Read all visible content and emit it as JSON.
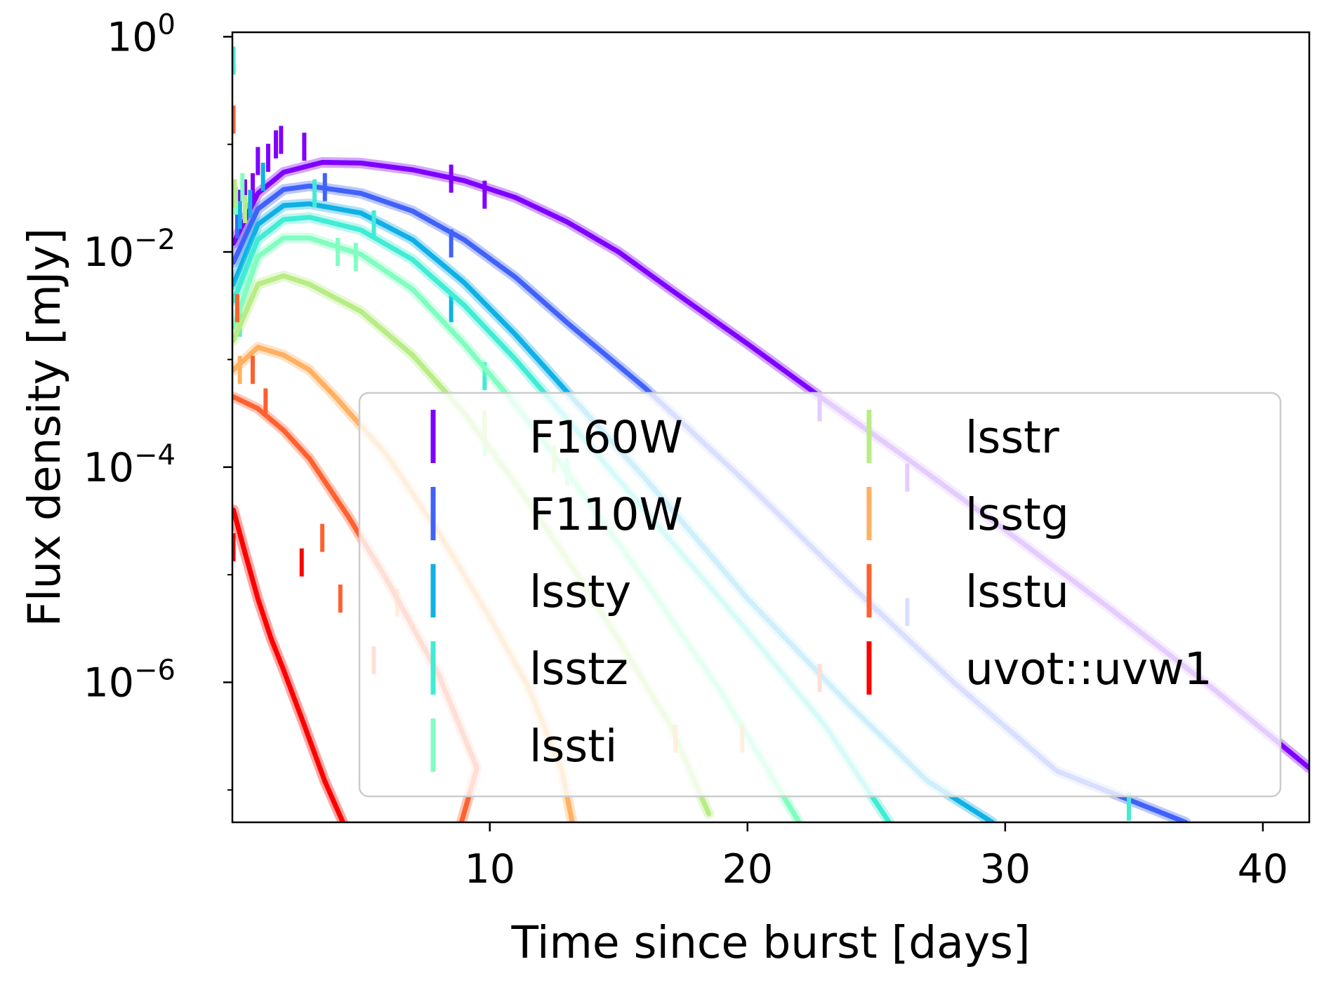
{
  "chart_data": {
    "type": "line",
    "xlabel": "Time since burst [days]",
    "ylabel": "Flux density [mJy]",
    "xlim": [
      0.01,
      41.8
    ],
    "ylim": [
      5e-08,
      1.1
    ],
    "yscale": "log",
    "x_ticks": [
      10,
      20,
      30,
      40
    ],
    "x_tick_labels": [
      "10",
      "20",
      "30",
      "40"
    ],
    "y_ticks": [
      1,
      0.01,
      0.0001,
      1e-06
    ],
    "y_tick_labels": [
      {
        "base": "10",
        "exp": "0"
      },
      {
        "base": "10",
        "exp": "−2"
      },
      {
        "base": "10",
        "exp": "−4"
      },
      {
        "base": "10",
        "exp": "−6"
      }
    ],
    "legend": {
      "location": "lower right",
      "columns": 2
    },
    "grid": false,
    "series": [
      {
        "name": "F160W",
        "color": "#7f00ff",
        "model": [
          [
            0.05,
            0.012
          ],
          [
            1,
            0.035
          ],
          [
            2,
            0.055
          ],
          [
            3.5,
            0.068
          ],
          [
            5,
            0.067
          ],
          [
            7,
            0.058
          ],
          [
            9,
            0.046
          ],
          [
            11,
            0.032
          ],
          [
            13,
            0.019
          ],
          [
            15,
            0.01
          ],
          [
            17,
            0.0045
          ],
          [
            20,
            0.0014
          ],
          [
            23,
            0.00042
          ],
          [
            26,
            0.00013
          ],
          [
            30,
            2.6e-05
          ],
          [
            34,
            5e-06
          ],
          [
            38,
            9e-07
          ],
          [
            41.8,
            1.6e-07
          ]
        ],
        "points": [
          [
            0.3,
            0.028
          ],
          [
            0.5,
            0.035
          ],
          [
            0.8,
            0.04
          ],
          [
            1.0,
            0.07
          ],
          [
            1.4,
            0.075
          ],
          [
            1.7,
            0.1
          ],
          [
            1.9,
            0.11
          ],
          [
            2.8,
            0.095
          ],
          [
            8.5,
            0.048
          ],
          [
            9.8,
            0.034
          ],
          [
            22.8,
            0.00036
          ],
          [
            26.2,
            8e-05
          ]
        ]
      },
      {
        "name": "F110W",
        "color": "#4062fa",
        "model": [
          [
            0.05,
            0.008
          ],
          [
            1,
            0.025
          ],
          [
            2,
            0.038
          ],
          [
            3,
            0.041
          ],
          [
            5,
            0.035
          ],
          [
            7,
            0.024
          ],
          [
            9,
            0.013
          ],
          [
            11,
            0.0058
          ],
          [
            13,
            0.0022
          ],
          [
            16,
            0.00055
          ],
          [
            20,
            7e-05
          ],
          [
            24,
            8e-06
          ],
          [
            28,
            1e-06
          ],
          [
            32,
            1.5e-07
          ],
          [
            37,
            5e-08
          ]
        ],
        "points": [
          [
            0.2,
            0.018
          ],
          [
            0.5,
            0.025
          ],
          [
            3.6,
            0.04
          ],
          [
            8.5,
            0.012
          ],
          [
            26.2,
            4.5e-06
          ]
        ]
      },
      {
        "name": "lssty",
        "color": "#0fb0e6",
        "model": [
          [
            0.05,
            0.005
          ],
          [
            1,
            0.018
          ],
          [
            2,
            0.027
          ],
          [
            3,
            0.028
          ],
          [
            5,
            0.023
          ],
          [
            7,
            0.013
          ],
          [
            9,
            0.0052
          ],
          [
            11,
            0.0017
          ],
          [
            13,
            0.0005
          ],
          [
            16,
            8e-05
          ],
          [
            20,
            6e-06
          ],
          [
            24,
            6e-07
          ],
          [
            27,
            1.2e-07
          ],
          [
            29.5,
            5e-08
          ]
        ],
        "points": [
          [
            0.3,
            0.022
          ],
          [
            0.7,
            0.028
          ],
          [
            1.2,
            0.05
          ],
          [
            8.5,
            0.003
          ]
        ]
      },
      {
        "name": "lsstz",
        "color": "#40ecd4",
        "model": [
          [
            0.05,
            0.0035
          ],
          [
            1,
            0.013
          ],
          [
            2,
            0.02
          ],
          [
            3,
            0.021
          ],
          [
            5,
            0.016
          ],
          [
            7,
            0.0085
          ],
          [
            9,
            0.0032
          ],
          [
            11,
            0.001
          ],
          [
            13,
            0.00028
          ],
          [
            16,
            4e-05
          ],
          [
            20,
            3e-06
          ],
          [
            23,
            4e-07
          ],
          [
            25.5,
            5e-08
          ]
        ],
        "points": [
          [
            0.05,
            0.6
          ],
          [
            0.3,
            0.0022
          ],
          [
            3.2,
            0.035
          ],
          [
            5.5,
            0.018
          ],
          [
            9.8,
            0.0007
          ],
          [
            34.8,
            7e-08
          ]
        ]
      },
      {
        "name": "lssti",
        "color": "#80fec0",
        "model": [
          [
            0.05,
            0.002
          ],
          [
            1,
            0.009
          ],
          [
            2,
            0.0135
          ],
          [
            3,
            0.0135
          ],
          [
            5,
            0.0095
          ],
          [
            7,
            0.0045
          ],
          [
            9,
            0.0014
          ],
          [
            11,
            0.00038
          ],
          [
            13,
            9e-05
          ],
          [
            16,
            9e-06
          ],
          [
            19,
            8e-07
          ],
          [
            22,
            5e-08
          ]
        ],
        "points": [
          [
            0.15,
            0.03
          ],
          [
            0.4,
            0.04
          ],
          [
            4.1,
            0.01
          ],
          [
            4.8,
            0.009
          ],
          [
            9.8,
            0.00017
          ],
          [
            13,
            9e-05
          ]
        ]
      },
      {
        "name": "lsstr",
        "color": "#b8ec84",
        "model": [
          [
            0.05,
            0.0015
          ],
          [
            1,
            0.005
          ],
          [
            2,
            0.006
          ],
          [
            3,
            0.005
          ],
          [
            5,
            0.0028
          ],
          [
            7,
            0.0011
          ],
          [
            9,
            0.00032
          ],
          [
            11,
            7e-05
          ],
          [
            13,
            1.4e-05
          ],
          [
            15,
            2.5e-06
          ],
          [
            17,
            4e-07
          ],
          [
            18.5,
            6e-08
          ]
        ],
        "points": [
          [
            0.1,
            0.035
          ],
          [
            0.5,
            0.025
          ],
          [
            9.8,
            0.00025
          ],
          [
            12.5,
            0.00012
          ]
        ]
      },
      {
        "name": "lsstg",
        "color": "#ffb060",
        "model": [
          [
            0.05,
            0.0008
          ],
          [
            1,
            0.0013
          ],
          [
            2,
            0.0011
          ],
          [
            3,
            0.0008
          ],
          [
            4,
            0.00045
          ],
          [
            6,
            0.00013
          ],
          [
            8,
            2.5e-05
          ],
          [
            10,
            4e-06
          ],
          [
            11.5,
            9e-07
          ],
          [
            12.8,
            1.5e-07
          ],
          [
            13.2,
            5e-08
          ]
        ],
        "points": [
          [
            0.3,
            0.0008
          ],
          [
            6.4,
            5.5e-06
          ],
          [
            17.2,
            3e-07
          ],
          [
            19.8,
            3e-07
          ]
        ]
      },
      {
        "name": "lsstu",
        "color": "#ff6030",
        "model": [
          [
            0.05,
            0.00045
          ],
          [
            0.5,
            0.0004
          ],
          [
            1,
            0.00035
          ],
          [
            2,
            0.00022
          ],
          [
            3,
            0.00012
          ],
          [
            4.5,
            3.5e-05
          ],
          [
            6,
            9e-06
          ],
          [
            8,
            1.2e-06
          ],
          [
            9.5,
            1.6e-07
          ],
          [
            8.9,
            5e-08
          ]
        ],
        "points": [
          [
            0.05,
            0.17
          ],
          [
            0.2,
            0.003
          ],
          [
            0.8,
            0.0008
          ],
          [
            1.3,
            0.0004
          ],
          [
            3.5,
            2.2e-05
          ],
          [
            4.2,
            6e-06
          ],
          [
            5.5,
            1.6e-06
          ],
          [
            22.8,
            1.1e-06
          ]
        ]
      },
      {
        "name": "uvot::uvw1",
        "color": "#ff0000",
        "model": [
          [
            0.05,
            4e-05
          ],
          [
            0.5,
            1.6e-05
          ],
          [
            1,
            6e-06
          ],
          [
            1.5,
            2.6e-06
          ],
          [
            2,
            1.3e-06
          ],
          [
            2.8,
            4e-07
          ],
          [
            3.6,
            1.2e-07
          ],
          [
            4.3,
            5e-08
          ]
        ],
        "points": [
          [
            0.05,
            1.8e-05
          ],
          [
            2.7,
            1.3e-05
          ]
        ]
      }
    ]
  }
}
